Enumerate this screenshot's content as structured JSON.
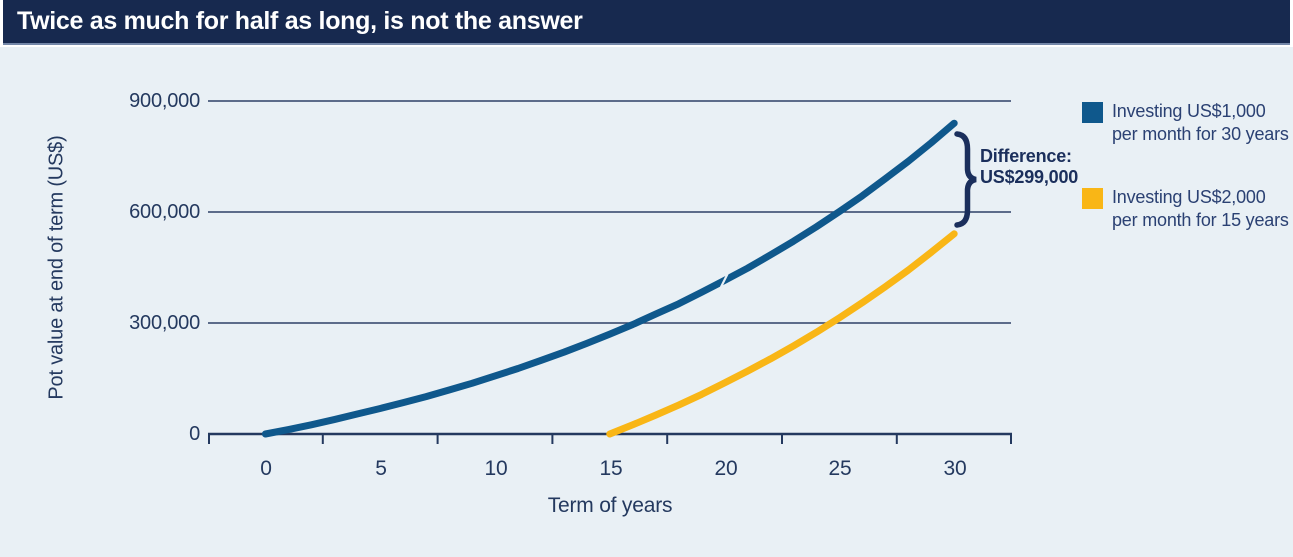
{
  "title_bar": {
    "title": "Twice as much for half as long, is not the answer"
  },
  "colors": {
    "title_bar_bg": "#17294F",
    "panel_bg": "#E9F0F5",
    "axis_and_text": "#24395F",
    "annotation_text": "#1B2F5C",
    "series_blue": "#0F588C",
    "series_yellow": "#F9B616"
  },
  "chart_data": {
    "type": "line",
    "title": "Twice as much for half as long, is not the answer",
    "xlabel": "Term of years",
    "ylabel": "Pot value at end of term (US$)",
    "x_range_years": [
      0,
      30
    ],
    "y_range": [
      0,
      900000
    ],
    "grid": "horizontal gridlines at 0, 300000, 600000, 900000",
    "legend_position": "right",
    "x_tick_labels": [
      "0",
      "5",
      "10",
      "15",
      "20",
      "25",
      "30"
    ],
    "y_tick_labels": [
      "900,000",
      "600,000",
      "300,000",
      "0"
    ],
    "series": [
      {
        "name": "Investing US$1,000 per month for 30 years",
        "color": "#0F588C",
        "x": [
          0,
          1,
          2,
          3,
          4,
          5,
          6,
          7,
          8,
          9,
          10,
          11,
          12,
          13,
          14,
          15,
          16,
          17,
          18,
          19,
          20,
          21,
          22,
          23,
          24,
          25,
          26,
          27,
          28,
          29,
          30
        ],
        "values": [
          0,
          12000,
          25000,
          39000,
          54000,
          69000,
          85000,
          101000,
          119000,
          137000,
          157000,
          177000,
          199000,
          221000,
          245000,
          270000,
          296000,
          324000,
          352000,
          383000,
          415000,
          448000,
          484000,
          521000,
          560000,
          601000,
          644000,
          690000,
          737000,
          787000,
          840000
        ]
      },
      {
        "name": "Investing US$2,000 per month for 15 years",
        "color": "#F9B616",
        "x": [
          15,
          16,
          17,
          18,
          19,
          20,
          21,
          22,
          23,
          24,
          25,
          26,
          27,
          28,
          29,
          30
        ],
        "values": [
          0,
          25000,
          51000,
          78000,
          107000,
          138000,
          170000,
          203000,
          238000,
          275000,
          314000,
          355000,
          398000,
          443000,
          491000,
          541000
        ]
      }
    ],
    "annotation": {
      "line1": "Difference:",
      "line2": "US$299,000",
      "value": 299000
    }
  }
}
